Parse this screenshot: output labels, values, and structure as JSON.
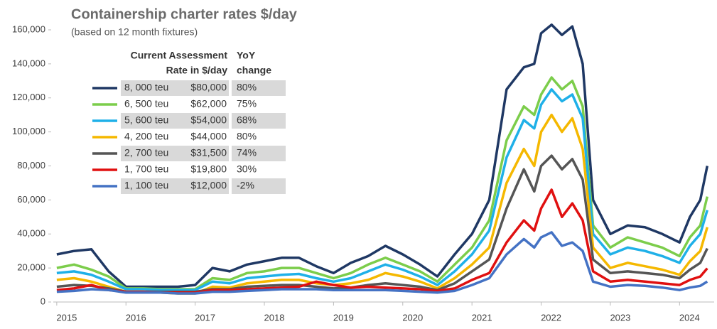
{
  "chart_data": {
    "type": "line",
    "title": "Containership charter rates $/day",
    "subtitle": "(based on 12 month fixtures)",
    "x": [
      2015,
      2015.25,
      2015.5,
      2015.75,
      2016,
      2016.25,
      2016.5,
      2016.75,
      2017,
      2017.25,
      2017.5,
      2017.75,
      2018,
      2018.25,
      2018.5,
      2018.75,
      2019,
      2019.25,
      2019.5,
      2019.75,
      2020,
      2020.25,
      2020.5,
      2020.75,
      2021,
      2021.25,
      2021.5,
      2021.75,
      2021.9,
      2022,
      2022.15,
      2022.3,
      2022.45,
      2022.6,
      2022.75,
      2023,
      2023.25,
      2023.5,
      2023.75,
      2024,
      2024.15,
      2024.3,
      2024.4
    ],
    "series": [
      {
        "name": "8, 000 teu",
        "color": "#1f3864",
        "values": [
          28000,
          30000,
          31000,
          18000,
          9000,
          9000,
          9000,
          9000,
          10000,
          20000,
          18000,
          22000,
          24000,
          26000,
          26000,
          21000,
          17000,
          23000,
          27000,
          33000,
          28000,
          22000,
          15000,
          28000,
          40000,
          60000,
          125000,
          138000,
          140000,
          158000,
          163000,
          157000,
          162000,
          140000,
          60000,
          40000,
          45000,
          44000,
          40000,
          35000,
          50000,
          60000,
          80000
        ]
      },
      {
        "name": "6, 500 teu",
        "color": "#7ccd4b",
        "values": [
          20000,
          22000,
          19000,
          15000,
          8000,
          8000,
          7500,
          7500,
          7500,
          14000,
          13000,
          17000,
          18000,
          20000,
          20000,
          17000,
          14000,
          17000,
          22000,
          26000,
          22000,
          18000,
          12000,
          22000,
          32000,
          48000,
          95000,
          115000,
          110000,
          122000,
          132000,
          125000,
          130000,
          115000,
          45000,
          32000,
          38000,
          35000,
          32000,
          27000,
          38000,
          45000,
          62000
        ]
      },
      {
        "name": "5, 600 teu",
        "color": "#1fb0e8",
        "values": [
          17000,
          18000,
          16000,
          12000,
          7500,
          7500,
          7000,
          7000,
          7000,
          12000,
          11000,
          14000,
          15000,
          16000,
          16500,
          14000,
          12000,
          14000,
          18000,
          22000,
          19000,
          15000,
          10000,
          18000,
          28000,
          42000,
          85000,
          107000,
          102000,
          116000,
          125000,
          118000,
          122000,
          108000,
          40000,
          28000,
          32000,
          30000,
          27000,
          23000,
          33000,
          40000,
          54000
        ]
      },
      {
        "name": "4, 200 teu",
        "color": "#f5b800",
        "values": [
          13000,
          14000,
          12000,
          9000,
          6000,
          6000,
          5500,
          5000,
          5000,
          9000,
          8500,
          11000,
          12000,
          13000,
          13000,
          11000,
          10000,
          11000,
          13000,
          17000,
          15000,
          12000,
          8000,
          14000,
          22000,
          32000,
          70000,
          90000,
          80000,
          100000,
          110000,
          100000,
          108000,
          90000,
          32000,
          20000,
          23000,
          21000,
          19000,
          16000,
          24000,
          30000,
          44000
        ]
      },
      {
        "name": "2, 700 teu",
        "color": "#555555",
        "values": [
          9000,
          10000,
          9500,
          8000,
          6000,
          6000,
          6000,
          6000,
          6000,
          7500,
          7500,
          9000,
          9500,
          10000,
          10000,
          9000,
          8000,
          8500,
          10000,
          11000,
          10000,
          9000,
          7000,
          11000,
          18000,
          25000,
          55000,
          78000,
          65000,
          80000,
          86000,
          78000,
          84000,
          72000,
          25000,
          17000,
          18000,
          17000,
          16000,
          14000,
          19000,
          23000,
          31500
        ]
      },
      {
        "name": "1, 700 teu",
        "color": "#e01010",
        "values": [
          7000,
          8000,
          10000,
          7000,
          6000,
          6000,
          5500,
          5500,
          5500,
          7000,
          7000,
          7500,
          8000,
          8500,
          9000,
          12000,
          10000,
          8500,
          9000,
          8500,
          8000,
          7500,
          6500,
          8000,
          13000,
          17000,
          35000,
          48000,
          42000,
          55000,
          66000,
          50000,
          58000,
          48000,
          18000,
          12000,
          13000,
          12000,
          11000,
          10000,
          13000,
          15000,
          19800
        ]
      },
      {
        "name": "1, 100 teu",
        "color": "#4472c4",
        "values": [
          6000,
          6500,
          7500,
          7000,
          5500,
          5500,
          5500,
          5000,
          5000,
          6000,
          6000,
          6500,
          7000,
          7500,
          7500,
          7500,
          7000,
          7000,
          7000,
          7000,
          6500,
          6000,
          5500,
          6500,
          10000,
          14000,
          28000,
          37000,
          32000,
          38000,
          41000,
          33000,
          35000,
          30000,
          12000,
          9000,
          10000,
          9500,
          8500,
          7000,
          8500,
          9500,
          12000
        ]
      }
    ],
    "legend_headers": [
      "Current Assessment",
      "Rate in $/day",
      "YoY",
      "change"
    ],
    "legend_rates": [
      "$80,000",
      "$62,000",
      "$54,000",
      "$44,000",
      "$31,500",
      "$19,800",
      "$12,000"
    ],
    "legend_yoy": [
      "80%",
      "75%",
      "68%",
      "80%",
      "74%",
      "30%",
      "-2%"
    ],
    "xlim": [
      2014.95,
      2024.5
    ],
    "xticks": [
      2015,
      2016,
      2017,
      2018,
      2019,
      2020,
      2021,
      2022,
      2023,
      2024
    ],
    "ylim": [
      0,
      160000
    ],
    "yticks": [
      0,
      {
        "value": 20000,
        "label": "20,000"
      },
      {
        "value": 40000,
        "label": "40,000"
      },
      {
        "value": 60000,
        "label": "60,000"
      },
      {
        "value": 80000,
        "label": "80,000"
      },
      {
        "value": 100000,
        "label": "100,000"
      },
      {
        "value": 120000,
        "label": "120,000"
      },
      {
        "value": 140000,
        "label": "140,000"
      },
      {
        "value": 160000,
        "label": "160,000"
      }
    ]
  }
}
